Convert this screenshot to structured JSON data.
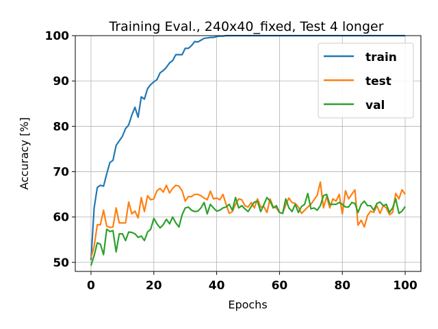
{
  "chart_data": {
    "type": "line",
    "title": "Training Eval., 240x40_fixed, Test 4 longer",
    "xlabel": "Epochs",
    "ylabel": "Accuracy [%]",
    "xlim": [
      -5,
      105
    ],
    "ylim": [
      48,
      100
    ],
    "xticks": [
      0,
      20,
      40,
      60,
      80,
      100
    ],
    "yticks": [
      50,
      60,
      70,
      80,
      90,
      100
    ],
    "grid": true,
    "legend_position": "top-right",
    "series": [
      {
        "name": "train",
        "color": "#1f77b4",
        "values": [
          50.5,
          62.0,
          66.5,
          67.0,
          66.8,
          69.5,
          72.0,
          72.5,
          75.8,
          76.8,
          77.8,
          79.5,
          80.3,
          82.5,
          84.2,
          82.0,
          86.5,
          86.0,
          88.3,
          89.2,
          89.8,
          90.3,
          91.8,
          92.3,
          93.0,
          94.0,
          94.5,
          95.8,
          95.8,
          95.8,
          97.2,
          97.2,
          97.8,
          98.7,
          98.6,
          99.0,
          99.4,
          99.5,
          99.6,
          99.6,
          99.8,
          99.9,
          99.9,
          100.0,
          100.0,
          100.0,
          100.0,
          100.0,
          100.0,
          100.0,
          100.0,
          100.0,
          100.0,
          100.0,
          100.0,
          100.0,
          100.0,
          100.0,
          100.0,
          100.0,
          100.0,
          100.0,
          100.0,
          100.0,
          100.0,
          100.0,
          100.0,
          100.0,
          100.0,
          100.0,
          100.0,
          100.0,
          100.0,
          100.0,
          100.0,
          100.0,
          100.0,
          100.0,
          100.0,
          100.0,
          100.0,
          100.0,
          100.0,
          100.0,
          100.0,
          100.0,
          100.0,
          100.0,
          100.0,
          100.0,
          100.0,
          100.0,
          100.0,
          100.0,
          100.0,
          100.0,
          100.0,
          100.0,
          100.0,
          100.0,
          100.0
        ]
      },
      {
        "name": "test",
        "color": "#ff7f0e",
        "values": [
          51.0,
          53.5,
          58.3,
          58.3,
          61.5,
          58.0,
          57.7,
          57.8,
          62.0,
          58.7,
          58.7,
          58.7,
          63.3,
          60.7,
          61.3,
          59.8,
          64.3,
          61.2,
          64.7,
          63.8,
          64.0,
          65.8,
          66.3,
          65.5,
          67.0,
          65.3,
          66.3,
          67.0,
          66.8,
          65.8,
          63.5,
          64.5,
          64.5,
          65.0,
          65.0,
          64.7,
          64.2,
          63.8,
          65.7,
          64.0,
          64.2,
          63.8,
          65.0,
          62.8,
          60.8,
          61.2,
          62.8,
          64.0,
          63.8,
          62.5,
          62.2,
          63.2,
          62.0,
          64.0,
          62.2,
          62.3,
          61.0,
          64.0,
          62.2,
          62.0,
          61.0,
          60.8,
          62.7,
          64.2,
          63.2,
          63.0,
          62.2,
          60.8,
          61.5,
          62.2,
          62.8,
          63.8,
          64.8,
          67.7,
          62.0,
          64.5,
          62.0,
          64.0,
          63.5,
          65.0,
          60.7,
          65.8,
          64.0,
          65.0,
          66.0,
          58.2,
          59.3,
          57.8,
          60.3,
          61.3,
          61.0,
          62.5,
          60.8,
          62.5,
          62.0,
          60.5,
          61.0,
          65.2,
          64.0,
          66.0,
          65.0
        ]
      },
      {
        "name": "val",
        "color": "#2ca02c",
        "values": [
          49.3,
          51.5,
          54.3,
          54.0,
          51.7,
          57.3,
          56.8,
          57.0,
          52.3,
          56.3,
          56.3,
          54.8,
          56.7,
          56.6,
          56.3,
          55.5,
          55.8,
          54.8,
          56.7,
          57.3,
          59.7,
          58.5,
          57.6,
          58.3,
          59.5,
          58.5,
          60.0,
          58.7,
          57.8,
          60.5,
          62.0,
          62.2,
          61.5,
          61.2,
          61.3,
          62.0,
          63.2,
          60.7,
          62.8,
          62.0,
          61.3,
          61.5,
          62.0,
          62.2,
          62.8,
          61.5,
          64.3,
          62.0,
          62.5,
          61.8,
          61.2,
          62.3,
          63.3,
          63.5,
          61.2,
          62.7,
          64.3,
          63.5,
          62.0,
          62.5,
          61.0,
          60.8,
          64.0,
          62.0,
          61.2,
          62.8,
          61.0,
          62.3,
          62.8,
          65.2,
          61.8,
          62.0,
          61.5,
          62.5,
          64.7,
          65.0,
          62.8,
          62.8,
          62.8,
          63.2,
          62.8,
          62.2,
          62.2,
          63.2,
          63.0,
          61.0,
          62.8,
          63.5,
          62.5,
          62.5,
          61.5,
          63.0,
          63.3,
          62.5,
          62.8,
          61.0,
          62.0,
          64.0,
          60.8,
          61.3,
          62.3
        ]
      }
    ]
  }
}
